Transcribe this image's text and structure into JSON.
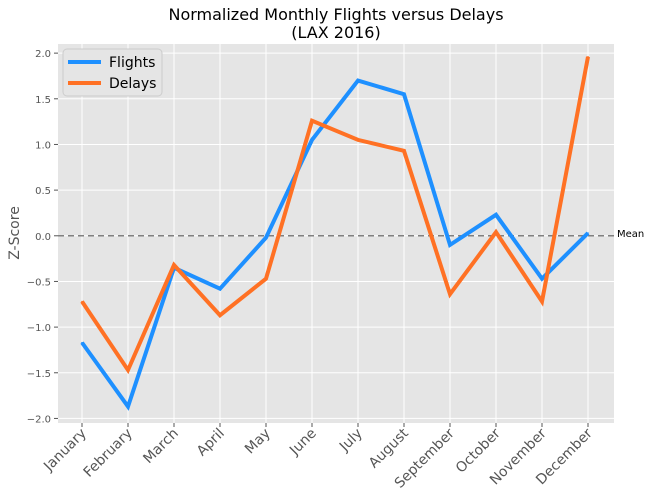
{
  "chart_data": {
    "type": "line",
    "title_line1": "Normalized Monthly Flights versus Delays",
    "title_line2": "(LAX 2016)",
    "xlabel": "",
    "ylabel": "Z-Score",
    "categories": [
      "January",
      "February",
      "March",
      "April",
      "May",
      "June",
      "July",
      "August",
      "September",
      "October",
      "November",
      "December"
    ],
    "ylim": [
      -2.05,
      2.1
    ],
    "yticks": [
      2.0,
      1.5,
      1.0,
      0.5,
      0.0,
      -0.5,
      -1.0,
      -1.5,
      -2.0
    ],
    "ytick_labels": [
      "2.0",
      "1.5",
      "1.0",
      "0.5",
      "0.0",
      "−0.5",
      "−1.0",
      "−1.5",
      "−2.0"
    ],
    "grid": true,
    "legend_position": "top-left",
    "series": [
      {
        "name": "Flights",
        "color": "#1e90ff",
        "values": [
          -1.17,
          -1.87,
          -0.35,
          -0.58,
          -0.02,
          1.05,
          1.7,
          1.55,
          -0.1,
          0.23,
          -0.47,
          0.03
        ]
      },
      {
        "name": "Delays",
        "color": "#ff7124",
        "values": [
          -0.72,
          -1.47,
          -0.32,
          -0.87,
          -0.47,
          1.26,
          1.05,
          0.93,
          -0.64,
          0.04,
          -0.72,
          1.96
        ]
      }
    ],
    "reference_line": {
      "value": 0.0,
      "label": "Mean",
      "color": "#808080",
      "style": "dashed"
    },
    "plot_background": "#e5e5e5",
    "grid_color": "#ffffff"
  }
}
